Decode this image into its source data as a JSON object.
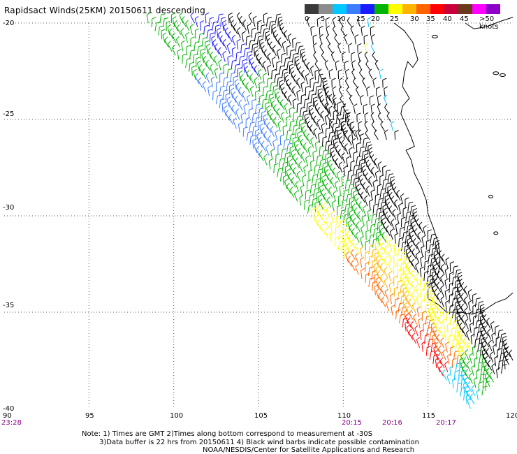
{
  "title": "Rapidsact Winds(25KM) 20150611 descending",
  "legend": {
    "labels": [
      "0",
      "5",
      "10",
      "15",
      "20",
      "25",
      "30",
      "35",
      "40",
      "45",
      ">50 knots"
    ],
    "colors": [
      "#3a3a3a",
      "#8c8c8c",
      "#00c8ff",
      "#3c7cff",
      "#1a1aff",
      "#00b400",
      "#ffff00",
      "#ffb400",
      "#ff6400",
      "#ff0000",
      "#c8003c",
      "#6b3a1e",
      "#ff00ff",
      "#8c00c8"
    ]
  },
  "axes": {
    "lat_labels": [
      "-20",
      "-25",
      "-30",
      "-35",
      "-40"
    ],
    "lon_labels": [
      "90",
      "95",
      "100",
      "105",
      "110",
      "115",
      "120"
    ]
  },
  "times": [
    "23:28",
    "20:15",
    "20:16",
    "20:17"
  ],
  "notes": {
    "line1": "Note: 1) Times are GMT 2)Times along bottom correspond to measurement at -30S",
    "line2": "3)Data buffer is 22 hrs from 20150611 4) Black wind barbs indicate possible contamination",
    "line3": "NOAA/NESDIS/Center for Satellite Applications and Research"
  },
  "map_region": {
    "lat_range": [
      -40,
      -20
    ],
    "lon_range": [
      90,
      120
    ],
    "features": [
      "coastline of Western Australia",
      "satellite swath of wind barbs"
    ]
  }
}
